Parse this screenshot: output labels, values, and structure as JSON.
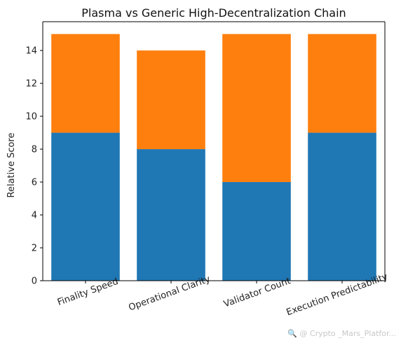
{
  "chart_data": {
    "type": "bar",
    "stacked": true,
    "title": "Plasma vs Generic High-Decentralization Chain",
    "xlabel": "",
    "ylabel": "Relative Score",
    "categories": [
      "Finality Speed",
      "Operational Clarity",
      "Validator Count",
      "Execution Predictability"
    ],
    "series": [
      {
        "values": [
          9,
          8,
          6,
          9
        ],
        "color": "#1f77b4"
      },
      {
        "values": [
          6,
          6,
          9,
          6
        ],
        "color": "#ff7f0e"
      }
    ],
    "ylim": [
      0,
      15.75
    ],
    "yticks": [
      "0",
      "2",
      "4",
      "6",
      "8",
      "10",
      "12",
      "14"
    ],
    "grid": false,
    "legend": "none"
  },
  "watermark": "🔍 @ Crypto _Mars_Platfor..."
}
